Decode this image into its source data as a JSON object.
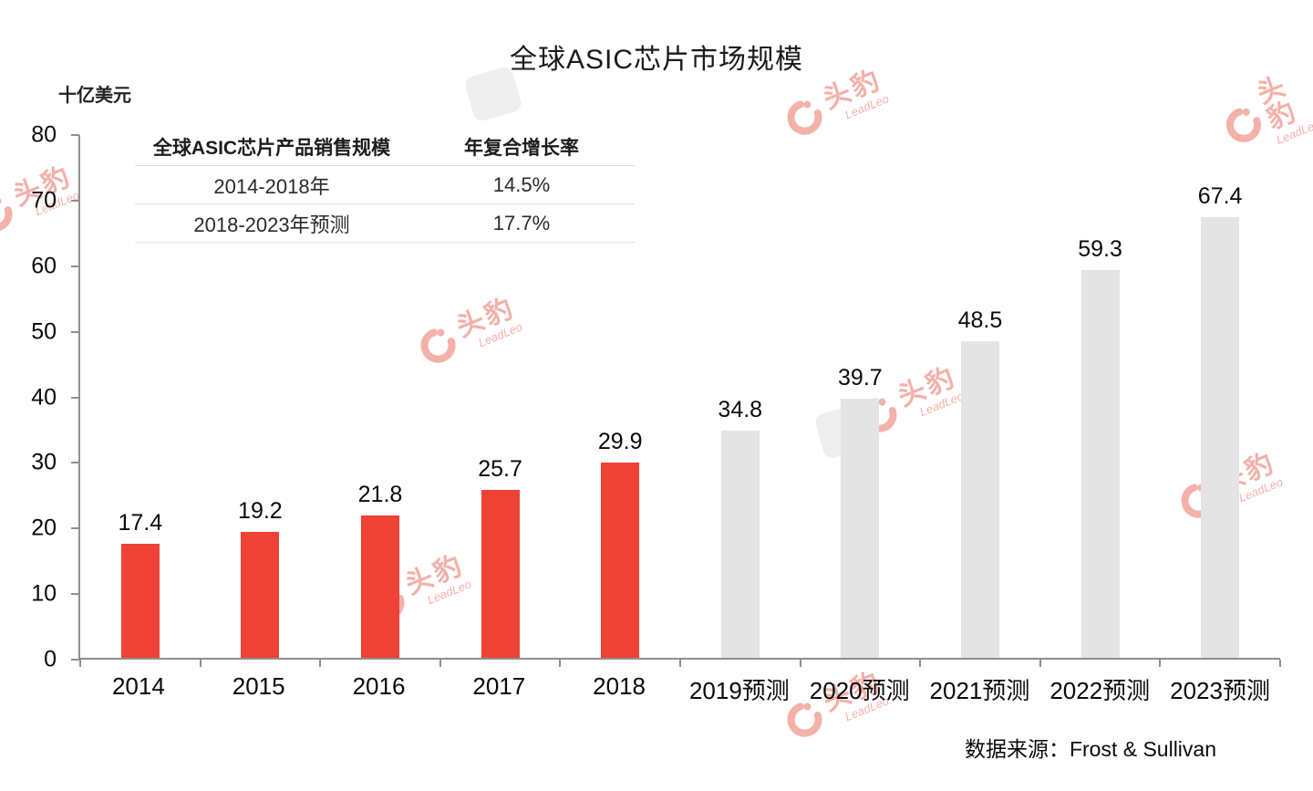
{
  "title": "全球ASIC芯片市场规模",
  "y_unit": "十亿美元",
  "source": "数据来源：Frost & Sullivan",
  "watermark": {
    "name": "头豹",
    "sub": "LeadLeo"
  },
  "cagr_table": {
    "col1_header": "全球ASIC芯片产品销售规模",
    "col2_header": "年复合增长率",
    "rows": [
      {
        "period": "2014-2018年",
        "cagr": "14.5%"
      },
      {
        "period": "2018-2023年预测",
        "cagr": "17.7%"
      }
    ]
  },
  "chart_data": {
    "type": "bar",
    "title": "全球ASIC芯片市场规模",
    "ylabel": "十亿美元",
    "xlabel": "",
    "categories": [
      "2014",
      "2015",
      "2016",
      "2017",
      "2018",
      "2019预测",
      "2020预测",
      "2021预测",
      "2022预测",
      "2023预测"
    ],
    "values": [
      17.4,
      19.2,
      21.8,
      25.7,
      29.9,
      34.8,
      39.7,
      48.5,
      59.3,
      67.4
    ],
    "actual_count": 5,
    "colors": {
      "actual": "#ee4237",
      "forecast": "#e4e4e4"
    },
    "ylim": [
      0,
      80
    ],
    "yticks": [
      0,
      10,
      20,
      30,
      40,
      50,
      60,
      70,
      80
    ],
    "grid": false,
    "legend": false,
    "annotation_source": "数据来源：Frost & Sullivan"
  }
}
